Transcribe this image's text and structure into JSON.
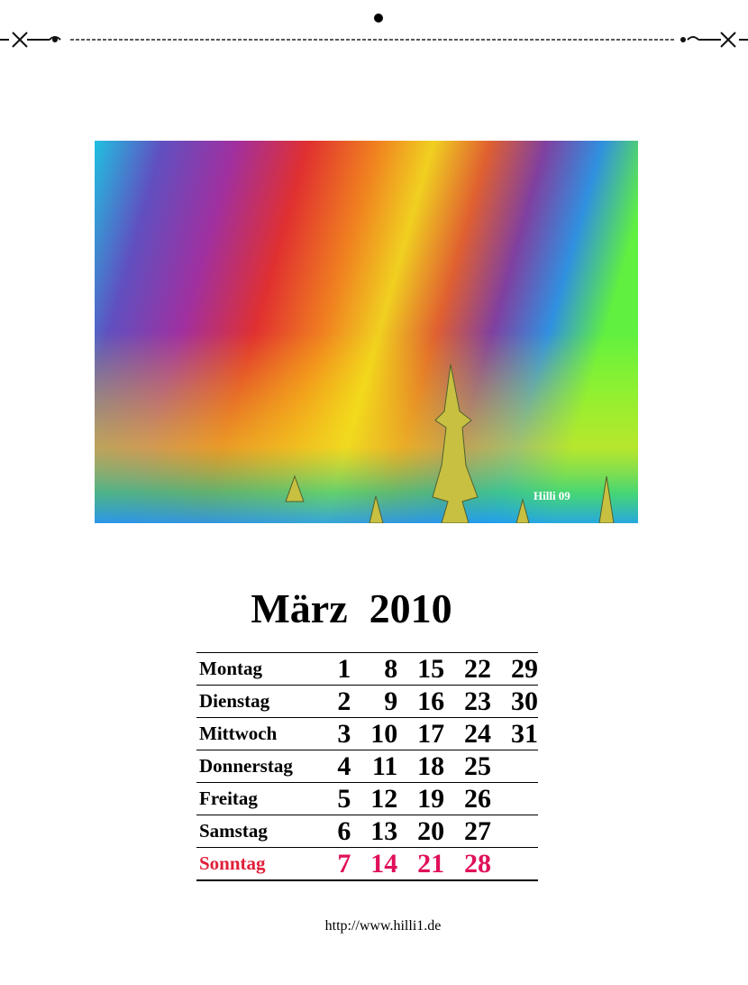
{
  "image": {
    "caption": "Hilli 09"
  },
  "title": {
    "month": "März",
    "year": "2010"
  },
  "calendar": {
    "rows": [
      {
        "day": "Montag",
        "dates": [
          1,
          8,
          15,
          22,
          29
        ]
      },
      {
        "day": "Dienstag",
        "dates": [
          2,
          9,
          16,
          23,
          30
        ]
      },
      {
        "day": "Mittwoch",
        "dates": [
          3,
          10,
          17,
          24,
          31
        ]
      },
      {
        "day": "Donnerstag",
        "dates": [
          4,
          11,
          18,
          25
        ]
      },
      {
        "day": "Freitag",
        "dates": [
          5,
          12,
          19,
          26
        ]
      },
      {
        "day": "Samstag",
        "dates": [
          6,
          13,
          20,
          27
        ]
      },
      {
        "day": "Sonntag",
        "dates": [
          7,
          14,
          21,
          28
        ]
      }
    ]
  },
  "footer": {
    "url": "http://www.hilli1.de"
  }
}
